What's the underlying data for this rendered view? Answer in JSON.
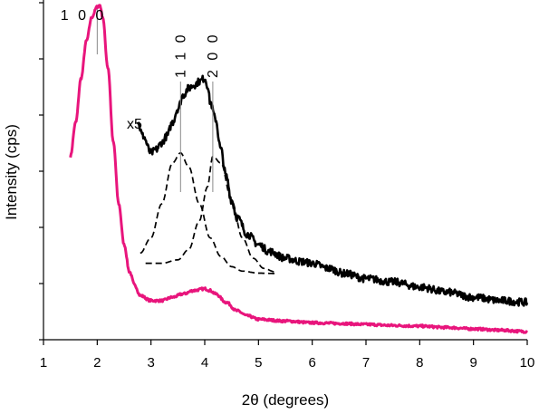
{
  "chart_data": {
    "type": "line",
    "xlabel": "2θ (degrees)",
    "ylabel": "Intensity (cps)",
    "xlim": [
      1,
      10
    ],
    "ylim": [
      0,
      100
    ],
    "x_ticks": [
      "1",
      "2",
      "3",
      "4",
      "5",
      "6",
      "7",
      "8",
      "9",
      "10"
    ],
    "y_ticks_labeled": false,
    "grid": false,
    "scale_annotation": "x5",
    "peak_labels": [
      {
        "text": "1 0 0",
        "x": 2.0
      },
      {
        "text": "1 1 0",
        "x": 3.55
      },
      {
        "text": "2 0 0",
        "x": 4.15
      }
    ],
    "series": [
      {
        "color": "#e8157c",
        "style": "solid",
        "x": [
          1.5,
          1.6,
          1.7,
          1.8,
          1.9,
          2.0,
          2.05,
          2.1,
          2.2,
          2.3,
          2.4,
          2.5,
          2.6,
          2.7,
          2.8,
          3.0,
          3.2,
          3.4,
          3.6,
          3.8,
          4.0,
          4.1,
          4.2,
          4.4,
          4.6,
          4.8,
          5.0,
          5.5,
          6.0,
          6.5,
          7.0,
          7.5,
          8.0,
          8.5,
          9.0,
          9.5,
          10.0
        ],
        "y": [
          54,
          64,
          77,
          88,
          95,
          98,
          98.5,
          95,
          80,
          58,
          40,
          28,
          20,
          16,
          13,
          11.5,
          11.5,
          12.5,
          13.5,
          14.5,
          15,
          14.5,
          13.5,
          11,
          8.5,
          7,
          6,
          5.5,
          5,
          4.8,
          4.5,
          4.2,
          4,
          3.6,
          3.2,
          2.8,
          2.4
        ]
      },
      {
        "color": "#000000",
        "style": "solid",
        "x": [
          2.75,
          2.85,
          3.0,
          3.1,
          3.2,
          3.3,
          3.4,
          3.5,
          3.6,
          3.7,
          3.8,
          3.9,
          4.0,
          4.05,
          4.1,
          4.2,
          4.3,
          4.4,
          4.5,
          4.6,
          4.8,
          5.0,
          5.2,
          5.5,
          5.8,
          6.0,
          6.3,
          6.6,
          7.0,
          7.5,
          8.0,
          8.5,
          9.0,
          9.5,
          10.0
        ],
        "y": [
          64,
          60,
          55,
          56,
          58,
          60,
          64,
          68,
          72,
          74,
          75,
          76,
          77,
          75,
          70,
          65,
          56,
          48,
          41,
          36,
          31,
          28,
          26,
          24,
          23,
          22.5,
          21,
          19.5,
          18,
          17,
          15.5,
          14,
          12.5,
          11.5,
          11
        ]
      },
      {
        "color": "#000000",
        "style": "dashed",
        "x": [
          2.8,
          3.0,
          3.2,
          3.4,
          3.55,
          3.7,
          3.9,
          4.1,
          4.3,
          4.5,
          4.7,
          5.0,
          5.3
        ],
        "y": [
          25.5,
          30,
          40,
          52,
          55,
          51,
          40,
          30,
          24.5,
          21.5,
          20.2,
          19.6,
          19.5
        ]
      },
      {
        "color": "#000000",
        "style": "dashed",
        "x": [
          2.9,
          3.2,
          3.5,
          3.7,
          3.9,
          4.05,
          4.15,
          4.3,
          4.5,
          4.7,
          4.9,
          5.1,
          5.3
        ],
        "y": [
          22.5,
          22.5,
          23.5,
          26.5,
          35,
          45,
          54,
          52,
          41,
          30,
          24,
          21,
          20
        ]
      }
    ]
  }
}
